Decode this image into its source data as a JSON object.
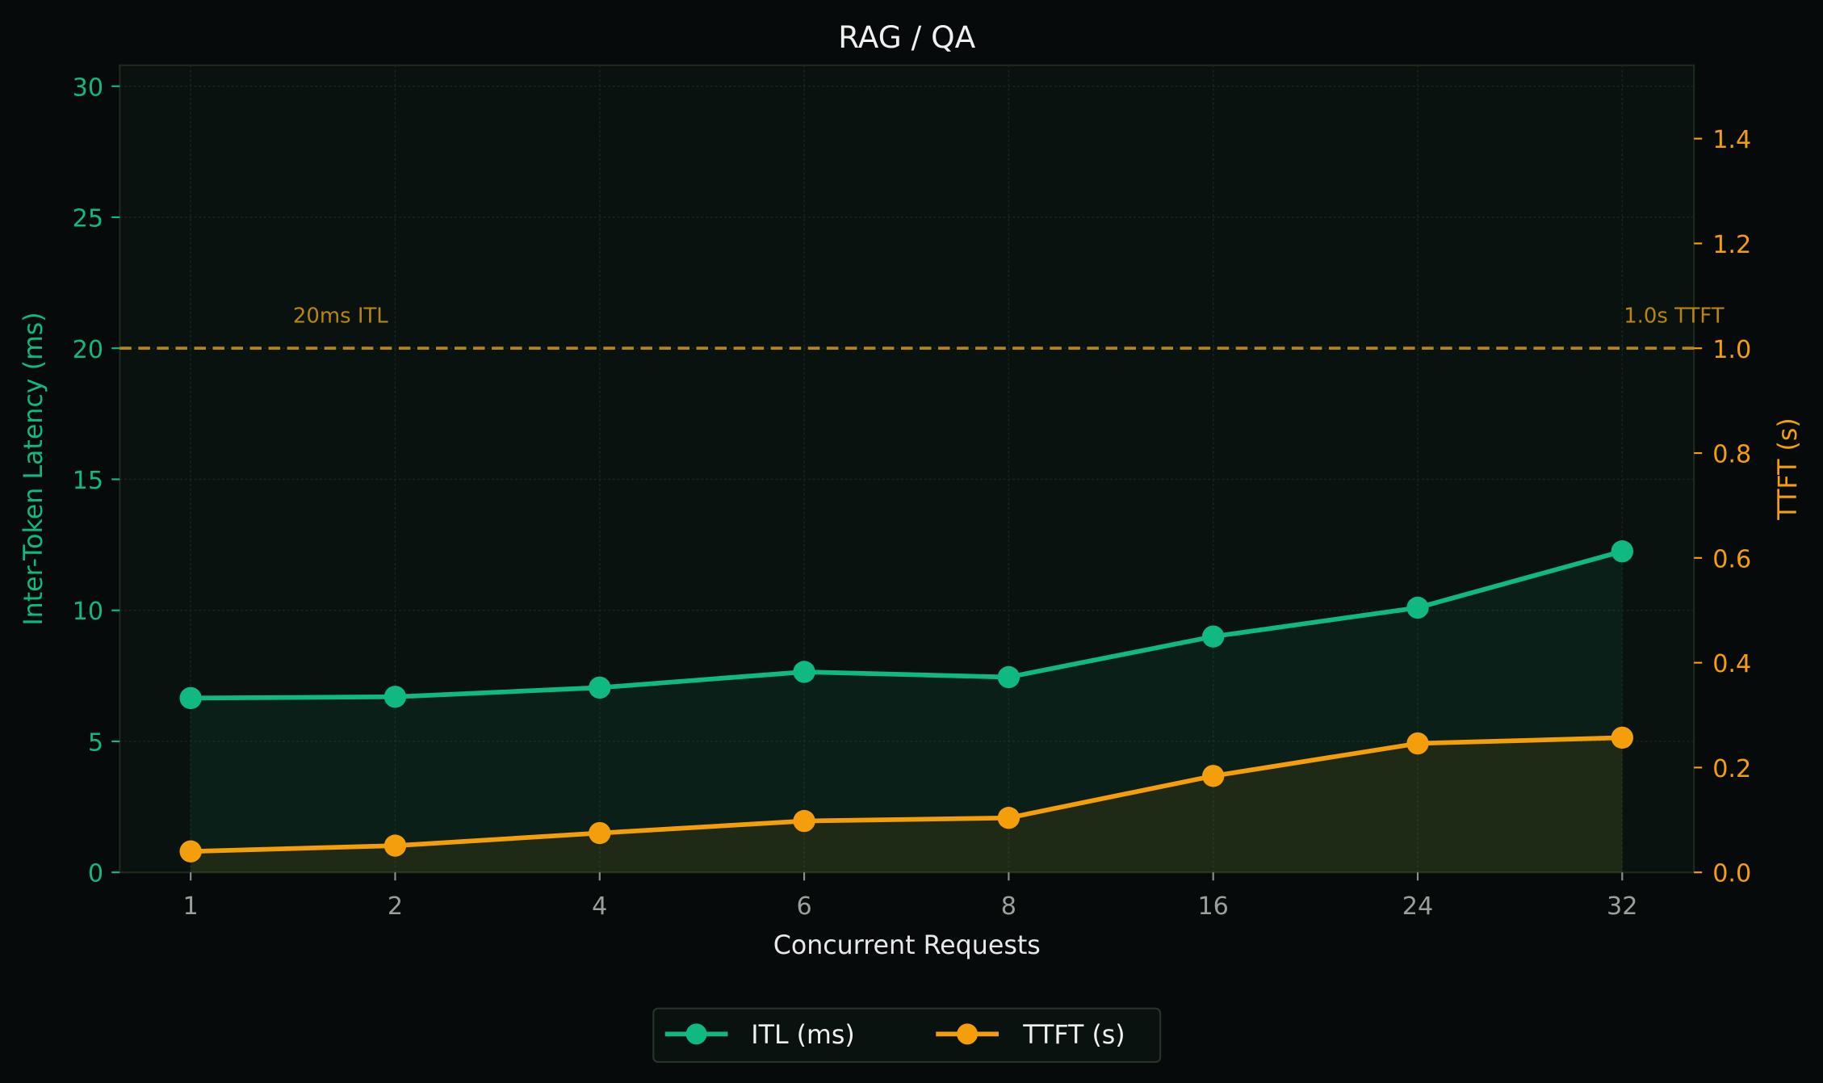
{
  "chart_data": {
    "type": "line",
    "title": "RAG / QA",
    "xlabel": "Concurrent Requests",
    "ylabel": "Inter-Token Latency (ms)",
    "y2label": "TTFT (s)",
    "categories": [
      "1",
      "2",
      "4",
      "6",
      "8",
      "16",
      "24",
      "32"
    ],
    "ylim": [
      0,
      30.8
    ],
    "y2lim": [
      0,
      1.54
    ],
    "yticks": [
      0,
      5,
      10,
      15,
      20,
      25,
      30
    ],
    "y2ticks": [
      "0.0",
      "0.2",
      "0.4",
      "0.6",
      "0.8",
      "1.0",
      "1.2",
      "1.4"
    ],
    "grid": true,
    "legend_placement": "bottom-center",
    "series": [
      {
        "name": "ITL (ms)",
        "axis": "left",
        "color": "#10b981",
        "values": [
          6.65,
          6.7,
          7.05,
          7.65,
          7.45,
          9.0,
          10.1,
          12.25
        ]
      },
      {
        "name": "TTFT (s)",
        "axis": "right",
        "color": "#f59e0b",
        "values": [
          0.04,
          0.051,
          0.075,
          0.098,
          0.104,
          0.184,
          0.246,
          0.257
        ]
      }
    ],
    "reference_lines": [
      {
        "label": "20ms ITL",
        "axis": "left",
        "value": 20
      },
      {
        "label": "1.0s TTFT",
        "axis": "right",
        "value": 1.0
      }
    ],
    "reference_color": "#b8860b"
  }
}
